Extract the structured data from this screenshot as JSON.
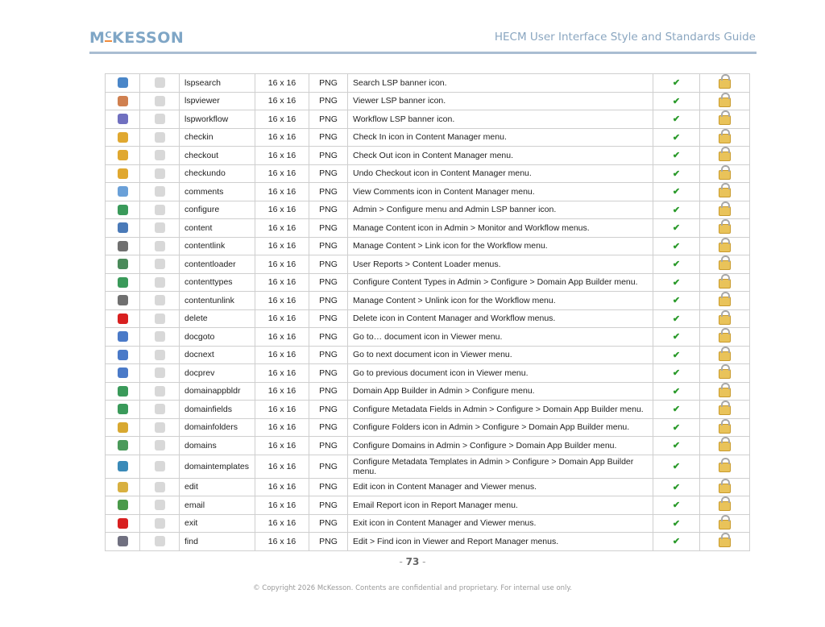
{
  "header": {
    "logo": "McKESSON",
    "title": "HECM User Interface Style and Standards Guide"
  },
  "colors": {
    "brand": "#7fa6c6",
    "accent": "#f08c3c",
    "check": "#2a9a2a"
  },
  "rows": [
    {
      "name": "lspsearch",
      "size": "16 x 16",
      "format": "PNG",
      "desc": "Search LSP banner icon.",
      "icon": "magnifier-icon",
      "color": "#4a86c8"
    },
    {
      "name": "lspviewer",
      "size": "16 x 16",
      "format": "PNG",
      "desc": "Viewer LSP banner icon.",
      "icon": "eye-icon",
      "color": "#d08050"
    },
    {
      "name": "lspworkflow",
      "size": "16 x 16",
      "format": "PNG",
      "desc": "Workflow LSP banner icon.",
      "icon": "gears-icon",
      "color": "#7070c0"
    },
    {
      "name": "checkin",
      "size": "16 x 16",
      "format": "PNG",
      "desc": "Check In icon in Content Manager menu.",
      "icon": "key-plus-icon",
      "color": "#e0a830"
    },
    {
      "name": "checkout",
      "size": "16 x 16",
      "format": "PNG",
      "desc": "Check Out icon in Content Manager menu.",
      "icon": "key-minus-icon",
      "color": "#e0a830"
    },
    {
      "name": "checkundo",
      "size": "16 x 16",
      "format": "PNG",
      "desc": "Undo Checkout icon in Content Manager menu.",
      "icon": "key-undo-icon",
      "color": "#e0a830"
    },
    {
      "name": "comments",
      "size": "16 x 16",
      "format": "PNG",
      "desc": "View Comments icon in Content Manager menu.",
      "icon": "speech-bubbles-icon",
      "color": "#6aa0d8"
    },
    {
      "name": "configure",
      "size": "16 x 16",
      "format": "PNG",
      "desc": "Admin > Configure menu and Admin LSP banner icon.",
      "icon": "globe-gear-icon",
      "color": "#3a9a5a"
    },
    {
      "name": "content",
      "size": "16 x 16",
      "format": "PNG",
      "desc": "Manage Content icon in Admin > Monitor and Workflow menus.",
      "icon": "content-grid-icon",
      "color": "#4a7ab8"
    },
    {
      "name": "contentlink",
      "size": "16 x 16",
      "format": "PNG",
      "desc": "Manage Content > Link icon for the Workflow menu.",
      "icon": "chain-link-icon",
      "color": "#707070"
    },
    {
      "name": "contentloader",
      "size": "16 x 16",
      "format": "PNG",
      "desc": "User Reports > Content Loader menus.",
      "icon": "loader-icon",
      "color": "#4a8a5a"
    },
    {
      "name": "contenttypes",
      "size": "16 x 16",
      "format": "PNG",
      "desc": "Configure Content Types in Admin > Configure > Domain App Builder menu.",
      "icon": "globe-doc-icon",
      "color": "#3a9a5a"
    },
    {
      "name": "contentunlink",
      "size": "16 x 16",
      "format": "PNG",
      "desc": "Manage Content > Unlink icon for the Workflow menu.",
      "icon": "chain-unlink-icon",
      "color": "#707070"
    },
    {
      "name": "delete",
      "size": "16 x 16",
      "format": "PNG",
      "desc": "Delete icon in Content Manager and Workflow menus.",
      "icon": "red-x-icon",
      "color": "#d82020"
    },
    {
      "name": "docgoto",
      "size": "16 x 16",
      "format": "PNG",
      "desc": "Go to… document icon in Viewer menu.",
      "icon": "doc-goto-icon",
      "color": "#4a7ac8"
    },
    {
      "name": "docnext",
      "size": "16 x 16",
      "format": "PNG",
      "desc": "Go to next document icon in Viewer menu.",
      "icon": "doc-next-icon",
      "color": "#4a7ac8"
    },
    {
      "name": "docprev",
      "size": "16 x 16",
      "format": "PNG",
      "desc": "Go to previous document icon in Viewer menu.",
      "icon": "doc-prev-icon",
      "color": "#4a7ac8"
    },
    {
      "name": "domainappbldr",
      "size": "16 x 16",
      "format": "PNG",
      "desc": "Domain App Builder in Admin > Configure menu.",
      "icon": "globe-icon",
      "color": "#3a9a5a"
    },
    {
      "name": "domainfields",
      "size": "16 x 16",
      "format": "PNG",
      "desc": "Configure Metadata Fields in Admin > Configure > Domain App Builder menu.",
      "icon": "globe-fields-icon",
      "color": "#3a9a5a"
    },
    {
      "name": "domainfolders",
      "size": "16 x 16",
      "format": "PNG",
      "desc": "Configure Folders icon in Admin > Configure > Domain App Builder menu.",
      "icon": "globe-folder-icon",
      "color": "#d8a830"
    },
    {
      "name": "domains",
      "size": "16 x 16",
      "format": "PNG",
      "desc": "Configure Domains in Admin > Configure > Domain App Builder menu.",
      "icon": "domains-icon",
      "color": "#4a9a5a"
    },
    {
      "name": "domaintemplates",
      "size": "16 x 16",
      "format": "PNG",
      "desc": "Configure Metadata Templates in Admin > Configure > Domain App Builder menu.",
      "icon": "globe-template-icon",
      "color": "#3a8ab8",
      "tall": true
    },
    {
      "name": "edit",
      "size": "16 x 16",
      "format": "PNG",
      "desc": "Edit icon in Content Manager and Viewer menus.",
      "icon": "pencil-icon",
      "color": "#d8b040"
    },
    {
      "name": "email",
      "size": "16 x 16",
      "format": "PNG",
      "desc": "Email Report icon in Report Manager menu.",
      "icon": "envelope-icon",
      "color": "#4a9a4a"
    },
    {
      "name": "exit",
      "size": "16 x 16",
      "format": "PNG",
      "desc": "Exit icon in Content Manager and Viewer menus.",
      "icon": "power-icon",
      "color": "#d82020"
    },
    {
      "name": "find",
      "size": "16 x 16",
      "format": "PNG",
      "desc": "Edit > Find icon in Viewer and Report Manager menus.",
      "icon": "binoculars-icon",
      "color": "#707080"
    }
  ],
  "footer": {
    "page_number": "73",
    "copyright": "© Copyright 2026 McKesson. Contents are confidential and proprietary. For internal use only."
  }
}
